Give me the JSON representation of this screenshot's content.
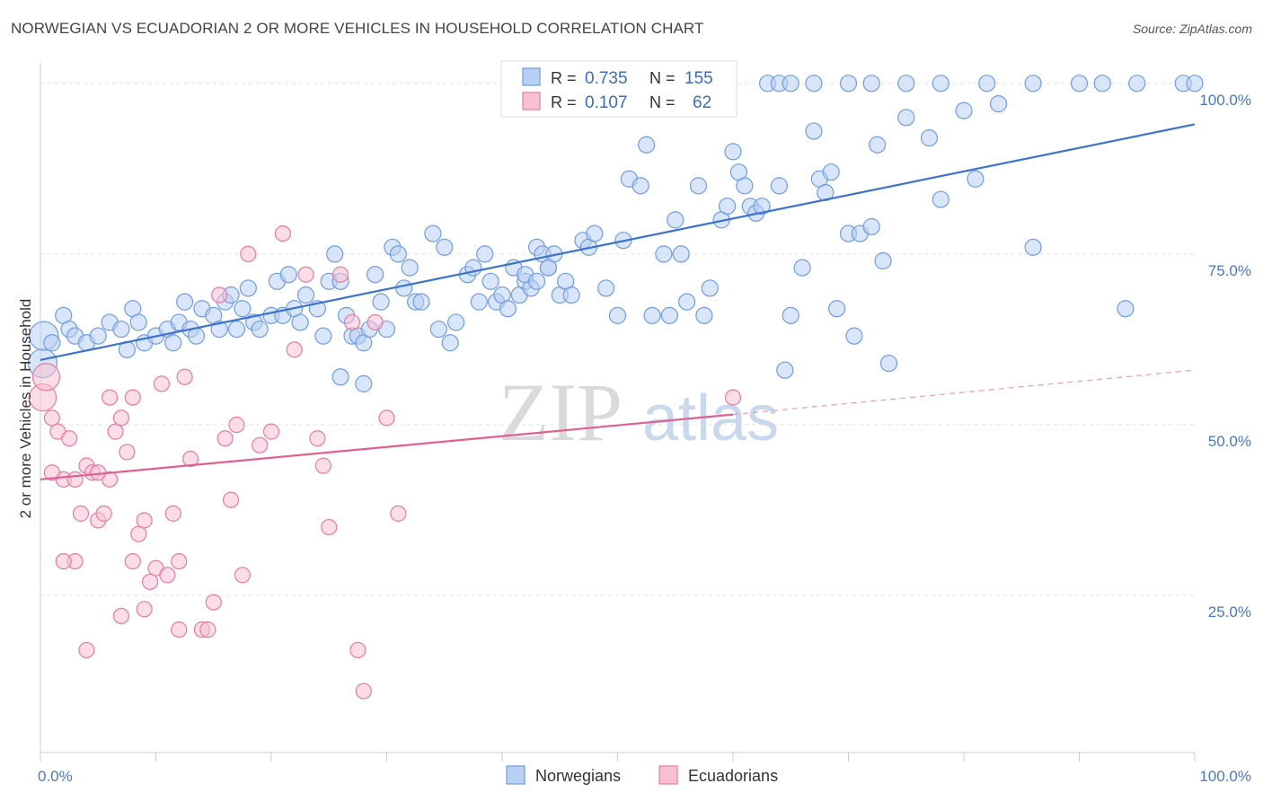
{
  "header": {
    "title": "NORWEGIAN VS ECUADORIAN 2 OR MORE VEHICLES IN HOUSEHOLD CORRELATION CHART",
    "source": "Source: ZipAtlas.com"
  },
  "watermark": {
    "zip": "ZIP",
    "atlas": "atlas"
  },
  "chart_data": {
    "type": "scatter",
    "title": "NORWEGIAN VS ECUADORIAN 2 OR MORE VEHICLES IN HOUSEHOLD CORRELATION CHART",
    "ylabel": "2 or more Vehicles in Household",
    "xlim": [
      0,
      100
    ],
    "ylim": [
      2,
      103
    ],
    "x_tick_labels": [
      "0.0%",
      "100.0%"
    ],
    "y_ticks": [
      {
        "value": 100,
        "label": "100.0%"
      },
      {
        "value": 75,
        "label": "75.0%"
      },
      {
        "value": 50,
        "label": "50.0%"
      },
      {
        "value": 25,
        "label": "25.0%"
      }
    ],
    "grid": true,
    "legend": {
      "placement": "top-center",
      "entries": [
        {
          "r_label": "R =",
          "r_value": "0.735",
          "n_label": "N =",
          "n_value": "155"
        },
        {
          "r_label": "R =",
          "r_value": "0.107",
          "n_label": "N =",
          "n_value": "62"
        }
      ]
    },
    "series": [
      {
        "name": "Norwegians",
        "color": "#6f9de0",
        "fill": "#b9cff3",
        "trend": {
          "x0": 0,
          "y0": 59.5,
          "x1": 100,
          "y1": 94.0
        },
        "points": [
          [
            0.2,
            59
          ],
          [
            0.3,
            63
          ],
          [
            1,
            62
          ],
          [
            2,
            66
          ],
          [
            2.5,
            64
          ],
          [
            3,
            63
          ],
          [
            4,
            62
          ],
          [
            5,
            63
          ],
          [
            6,
            65
          ],
          [
            7,
            64
          ],
          [
            7.5,
            61
          ],
          [
            8,
            67
          ],
          [
            8.5,
            65
          ],
          [
            9,
            62
          ],
          [
            10,
            63
          ],
          [
            11,
            64
          ],
          [
            11.5,
            62
          ],
          [
            12,
            65
          ],
          [
            12.5,
            68
          ],
          [
            13,
            64
          ],
          [
            13.5,
            63
          ],
          [
            14,
            67
          ],
          [
            15,
            66
          ],
          [
            15.5,
            64
          ],
          [
            16,
            68
          ],
          [
            16.5,
            69
          ],
          [
            17,
            64
          ],
          [
            17.5,
            67
          ],
          [
            18,
            70
          ],
          [
            18.5,
            65
          ],
          [
            19,
            64
          ],
          [
            20,
            66
          ],
          [
            20.5,
            71
          ],
          [
            21,
            66
          ],
          [
            21.5,
            72
          ],
          [
            22,
            67
          ],
          [
            22.5,
            65
          ],
          [
            23,
            69
          ],
          [
            24,
            67
          ],
          [
            24.5,
            63
          ],
          [
            25,
            71
          ],
          [
            25.5,
            75
          ],
          [
            26,
            71
          ],
          [
            26.5,
            66
          ],
          [
            27,
            63
          ],
          [
            27.5,
            63
          ],
          [
            28,
            62
          ],
          [
            28.5,
            64
          ],
          [
            29,
            72
          ],
          [
            29.5,
            68
          ],
          [
            30,
            64
          ],
          [
            30.5,
            76
          ],
          [
            31,
            75
          ],
          [
            31.5,
            70
          ],
          [
            32,
            73
          ],
          [
            32.5,
            68
          ],
          [
            33,
            68
          ],
          [
            34,
            78
          ],
          [
            34.5,
            64
          ],
          [
            35,
            76
          ],
          [
            35.5,
            62
          ],
          [
            36,
            65
          ],
          [
            37,
            72
          ],
          [
            37.5,
            73
          ],
          [
            38,
            68
          ],
          [
            38.5,
            75
          ],
          [
            39,
            71
          ],
          [
            39.5,
            68
          ],
          [
            40,
            69
          ],
          [
            40.5,
            67
          ],
          [
            41,
            73
          ],
          [
            41.5,
            69
          ],
          [
            42,
            71
          ],
          [
            42.5,
            70
          ],
          [
            43,
            76
          ],
          [
            43.5,
            75
          ],
          [
            44,
            73
          ],
          [
            44.5,
            75
          ],
          [
            45,
            69
          ],
          [
            45.5,
            71
          ],
          [
            46,
            69
          ],
          [
            47,
            77
          ],
          [
            47.5,
            76
          ],
          [
            48,
            78
          ],
          [
            49,
            70
          ],
          [
            50,
            66
          ],
          [
            50.5,
            77
          ],
          [
            51,
            86
          ],
          [
            52,
            85
          ],
          [
            52.5,
            91
          ],
          [
            53,
            66
          ],
          [
            54,
            75
          ],
          [
            54.5,
            66
          ],
          [
            55,
            80
          ],
          [
            55.5,
            75
          ],
          [
            56,
            68
          ],
          [
            57,
            85
          ],
          [
            57.5,
            66
          ],
          [
            58,
            70
          ],
          [
            59,
            80
          ],
          [
            59.5,
            82
          ],
          [
            60,
            90
          ],
          [
            60.5,
            87
          ],
          [
            61,
            85
          ],
          [
            61.5,
            82
          ],
          [
            62,
            81
          ],
          [
            62.5,
            82
          ],
          [
            64,
            85
          ],
          [
            64.5,
            58
          ],
          [
            65,
            66
          ],
          [
            66,
            73
          ],
          [
            67,
            93
          ],
          [
            67.5,
            86
          ],
          [
            68,
            84
          ],
          [
            68.5,
            87
          ],
          [
            69,
            67
          ],
          [
            70,
            78
          ],
          [
            70.5,
            63
          ],
          [
            71,
            78
          ],
          [
            72,
            79
          ],
          [
            72.5,
            91
          ],
          [
            73,
            74
          ],
          [
            73.5,
            59
          ],
          [
            75,
            95
          ],
          [
            77,
            92
          ],
          [
            78,
            83
          ],
          [
            80,
            96
          ],
          [
            81,
            86
          ],
          [
            83,
            97
          ],
          [
            86,
            76
          ],
          [
            94,
            67
          ],
          [
            63,
            100
          ],
          [
            64,
            100
          ],
          [
            65,
            100
          ],
          [
            67,
            100
          ],
          [
            70,
            100
          ],
          [
            72,
            100
          ],
          [
            75,
            100
          ],
          [
            78,
            100
          ],
          [
            82,
            100
          ],
          [
            86,
            100
          ],
          [
            90,
            100
          ],
          [
            92,
            100
          ],
          [
            95,
            100
          ],
          [
            99,
            100
          ],
          [
            100,
            100
          ],
          [
            42,
            72
          ],
          [
            43,
            71
          ],
          [
            44,
            73
          ],
          [
            28,
            56
          ],
          [
            26,
            57
          ]
        ]
      },
      {
        "name": "Ecuadorians",
        "color": "#e57ca0",
        "fill": "#f7c1d3",
        "trend": {
          "x0": 0,
          "y0": 42.0,
          "x1": 60,
          "y1": 51.5
        },
        "trend_ext": {
          "x0": 60,
          "y0": 51.5,
          "x1": 100,
          "y1": 58.0
        },
        "points": [
          [
            0.2,
            54
          ],
          [
            0.5,
            57
          ],
          [
            1,
            51
          ],
          [
            1.5,
            49
          ],
          [
            2,
            42
          ],
          [
            2.5,
            48
          ],
          [
            3,
            42
          ],
          [
            3.5,
            37
          ],
          [
            4,
            44
          ],
          [
            4.5,
            43
          ],
          [
            5,
            36
          ],
          [
            5.5,
            37
          ],
          [
            6,
            42
          ],
          [
            6.5,
            49
          ],
          [
            7,
            51
          ],
          [
            7.5,
            46
          ],
          [
            8,
            30
          ],
          [
            8.5,
            34
          ],
          [
            9,
            36
          ],
          [
            9.5,
            27
          ],
          [
            10,
            29
          ],
          [
            10.5,
            56
          ],
          [
            11,
            28
          ],
          [
            11.5,
            37
          ],
          [
            12,
            30
          ],
          [
            12.5,
            57
          ],
          [
            13,
            45
          ],
          [
            14,
            20
          ],
          [
            14.5,
            20
          ],
          [
            15,
            24
          ],
          [
            15.5,
            69
          ],
          [
            16,
            48
          ],
          [
            16.5,
            39
          ],
          [
            17,
            50
          ],
          [
            17.5,
            28
          ],
          [
            18,
            75
          ],
          [
            19,
            47
          ],
          [
            20,
            49
          ],
          [
            21,
            78
          ],
          [
            22,
            61
          ],
          [
            23,
            72
          ],
          [
            24,
            48
          ],
          [
            24.5,
            44
          ],
          [
            25,
            35
          ],
          [
            26,
            72
          ],
          [
            27,
            65
          ],
          [
            27.5,
            17
          ],
          [
            28,
            11
          ],
          [
            29,
            65
          ],
          [
            30,
            51
          ],
          [
            31,
            37
          ],
          [
            12,
            20
          ],
          [
            9,
            23
          ],
          [
            7,
            22
          ],
          [
            4,
            17
          ],
          [
            3,
            30
          ],
          [
            2,
            30
          ],
          [
            8,
            54
          ],
          [
            6,
            54
          ],
          [
            5,
            43
          ],
          [
            60,
            54
          ],
          [
            1,
            43
          ]
        ]
      }
    ]
  },
  "bottom_legend": [
    {
      "label": "Norwegians",
      "color": "#b9cff3",
      "border": "#6f9de0"
    },
    {
      "label": "Ecuadorians",
      "color": "#f7c1d3",
      "border": "#e57ca0"
    }
  ]
}
